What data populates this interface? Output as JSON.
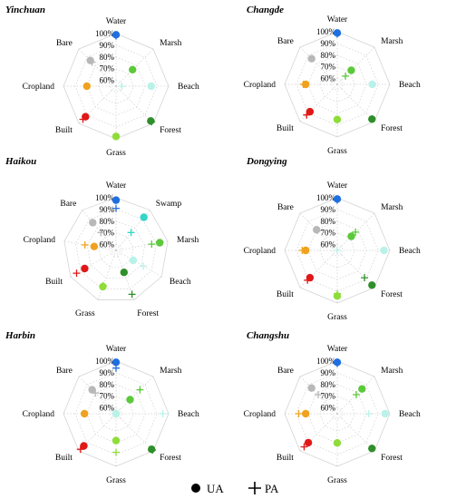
{
  "chart_data": {
    "type": "radar",
    "rlim": [
      55,
      100
    ],
    "r_ticks": [
      "60%",
      "70%",
      "80%",
      "90%",
      "100%"
    ],
    "legend": {
      "ua_label": "UA",
      "pa_label": "PA"
    },
    "colors": {
      "Water": "#1f6fe0",
      "Marsh": "#5cc93a",
      "Swamp": "#33d6c8",
      "Beach": "#b8f2e8",
      "Forest": "#2f8f2a",
      "Grass": "#8fdc3a",
      "Built": "#e01818",
      "Cropland": "#f0a21e",
      "Bare": "#b8b8b8",
      "grid": "#cfcfcf"
    },
    "charts": [
      {
        "title": "Yinchuan",
        "categories": [
          "Water",
          "Marsh",
          "Beach",
          "Forest",
          "Grass",
          "Built",
          "Cropland",
          "Bare"
        ],
        "ua": [
          99,
          75,
          85,
          97,
          98,
          92,
          80,
          86
        ],
        "pa": [
          98,
          75,
          60,
          98,
          98,
          95,
          80,
          84
        ]
      },
      {
        "title": "Changde",
        "categories": [
          "Water",
          "Marsh",
          "Beach",
          "Forest",
          "Grass",
          "Built",
          "Cropland",
          "Bare"
        ],
        "ua": [
          99,
          72,
          85,
          97,
          85,
          88,
          82,
          86
        ],
        "pa": [
          98,
          65,
          85,
          97,
          85,
          92,
          84,
          62
        ]
      },
      {
        "title": "Haikou",
        "categories": [
          "Water",
          "Swamp",
          "Marsh",
          "Beach",
          "Forest",
          "Grass",
          "Built",
          "Cropland",
          "Bare"
        ],
        "ua": [
          98,
          92,
          93,
          72,
          75,
          88,
          86,
          74,
          86
        ],
        "pa": [
          91,
          75,
          86,
          82,
          95,
          87,
          94,
          82,
          75
        ]
      },
      {
        "title": "Dongying",
        "categories": [
          "Water",
          "Marsh",
          "Beach",
          "Forest",
          "Grass",
          "Built",
          "Cropland",
          "Bare"
        ],
        "ua": [
          99,
          72,
          95,
          97,
          94,
          88,
          82,
          80
        ],
        "pa": [
          98,
          77,
          55,
          88,
          92,
          91,
          85,
          79
        ]
      },
      {
        "title": "Harbin",
        "categories": [
          "Water",
          "Marsh",
          "Beach",
          "Forest",
          "Grass",
          "Built",
          "Cropland",
          "Bare"
        ],
        "ua": [
          99,
          72,
          55,
          98,
          78,
          94,
          82,
          84
        ],
        "pa": [
          94,
          84,
          95,
          99,
          88,
          98,
          82,
          80
        ]
      },
      {
        "title": "Changshu",
        "categories": [
          "Water",
          "Marsh",
          "Beach",
          "Forest",
          "Grass",
          "Built",
          "Cropland",
          "Bare"
        ],
        "ua": [
          99,
          85,
          96,
          97,
          80,
          90,
          82,
          86
        ],
        "pa": [
          98,
          78,
          82,
          97,
          80,
          95,
          88,
          78
        ]
      }
    ]
  }
}
